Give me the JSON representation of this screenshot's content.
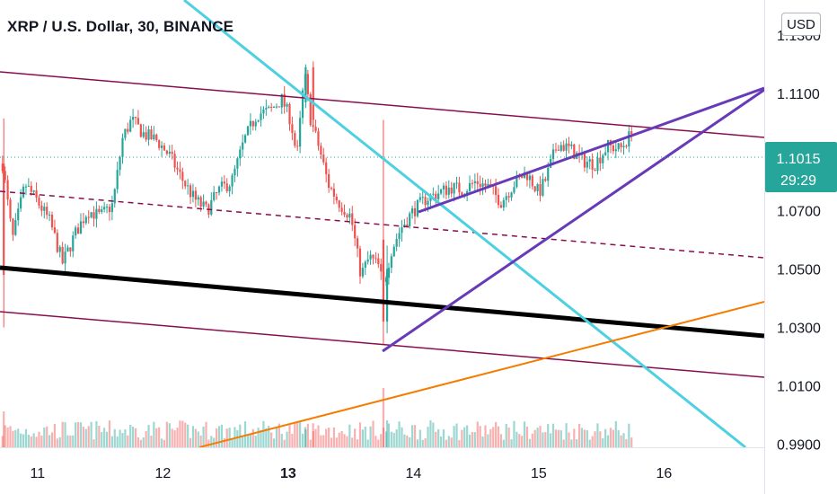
{
  "header": {
    "title": "XRP / U.S. Dollar, 30, BINANCE",
    "currency_button": "USD"
  },
  "colors": {
    "up": "#26a69a",
    "down": "#ef5350",
    "channel": "#880e4f",
    "wedge": "#673ab7",
    "trend_cyan": "#4dd0e1",
    "trend_orange": "#f57c00",
    "midline": "#000000",
    "price_tag": "#26a69a"
  },
  "chart_data": {
    "type": "candlestick",
    "symbol": "XRP / U.S. Dollar",
    "interval": "30",
    "exchange": "BINANCE",
    "x_ticks": [
      {
        "label": "11",
        "day": 11,
        "bold": false
      },
      {
        "label": "12",
        "day": 12,
        "bold": false
      },
      {
        "label": "13",
        "day": 13,
        "bold": true
      },
      {
        "label": "14",
        "day": 14,
        "bold": false
      },
      {
        "label": "15",
        "day": 15,
        "bold": false
      },
      {
        "label": "16",
        "day": 16,
        "bold": false
      }
    ],
    "y_ticks": [
      "1.1300",
      "1.1100",
      "1.0700",
      "1.0500",
      "1.0300",
      "1.0100",
      "0.9900"
    ],
    "y_range": [
      0.989,
      1.142
    ],
    "x_range_days": [
      10.7,
      16.8
    ],
    "last_price": "1.1015",
    "countdown": "29:29",
    "volume_max_relative": 1.0,
    "close_path": [
      [
        10.72,
        1.086
      ],
      [
        10.8,
        1.06
      ],
      [
        10.9,
        1.079
      ],
      [
        11.0,
        1.073
      ],
      [
        11.1,
        1.066
      ],
      [
        11.2,
        1.052
      ],
      [
        11.3,
        1.062
      ],
      [
        11.4,
        1.07
      ],
      [
        11.5,
        1.068
      ],
      [
        11.6,
        1.072
      ],
      [
        11.68,
        1.095
      ],
      [
        11.75,
        1.101
      ],
      [
        11.85,
        1.096
      ],
      [
        11.95,
        1.094
      ],
      [
        12.05,
        1.089
      ],
      [
        12.15,
        1.081
      ],
      [
        12.25,
        1.074
      ],
      [
        12.35,
        1.07
      ],
      [
        12.45,
        1.077
      ],
      [
        12.55,
        1.08
      ],
      [
        12.65,
        1.094
      ],
      [
        12.75,
        1.103
      ],
      [
        12.85,
        1.104
      ],
      [
        12.95,
        1.108
      ],
      [
        13.02,
        1.101
      ],
      [
        13.07,
        1.088
      ],
      [
        13.13,
        1.117
      ],
      [
        13.18,
        1.101
      ],
      [
        13.25,
        1.091
      ],
      [
        13.32,
        1.079
      ],
      [
        13.4,
        1.073
      ],
      [
        13.5,
        1.068
      ],
      [
        13.58,
        1.048
      ],
      [
        13.65,
        1.054
      ],
      [
        13.72,
        1.051
      ],
      [
        13.76,
        1.044
      ],
      [
        13.82,
        1.056
      ],
      [
        13.9,
        1.064
      ],
      [
        14.0,
        1.07
      ],
      [
        14.1,
        1.074
      ],
      [
        14.2,
        1.076
      ],
      [
        14.3,
        1.078
      ],
      [
        14.4,
        1.077
      ],
      [
        14.5,
        1.08
      ],
      [
        14.6,
        1.078
      ],
      [
        14.7,
        1.073
      ],
      [
        14.8,
        1.079
      ],
      [
        14.9,
        1.083
      ],
      [
        15.0,
        1.076
      ],
      [
        15.05,
        1.08
      ],
      [
        15.15,
        1.093
      ],
      [
        15.25,
        1.091
      ],
      [
        15.35,
        1.087
      ],
      [
        15.45,
        1.086
      ],
      [
        15.55,
        1.092
      ],
      [
        15.65,
        1.091
      ],
      [
        15.72,
        1.095
      ],
      [
        15.76,
        1.1015
      ]
    ]
  }
}
